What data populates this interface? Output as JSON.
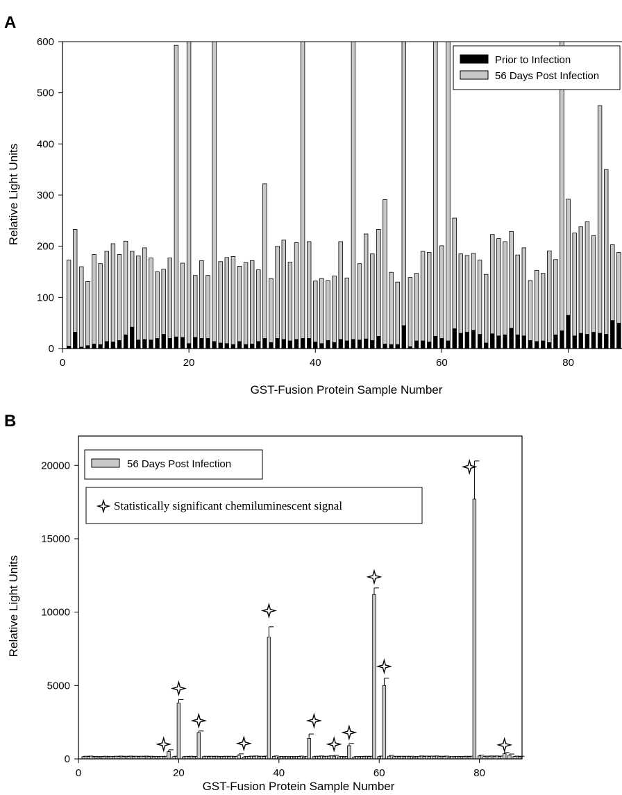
{
  "colors": {
    "prior": "#000000",
    "post": "#c8c8c8",
    "axis": "#000000"
  },
  "chart_data": [
    {
      "type": "bar",
      "panel_label": "A",
      "xlabel": "GST-Fusion Protein Sample Number",
      "ylabel": "Relative Light Units",
      "xlim": [
        0,
        88.5
      ],
      "ylim": [
        0,
        600
      ],
      "x_ticks": [
        0,
        20,
        40,
        60,
        80
      ],
      "y_ticks": [
        0,
        100,
        200,
        300,
        400,
        500,
        600
      ],
      "legend_position": "top-right",
      "x": [
        1,
        2,
        3,
        4,
        5,
        6,
        7,
        8,
        9,
        10,
        11,
        12,
        13,
        14,
        15,
        16,
        17,
        18,
        19,
        20,
        21,
        22,
        23,
        24,
        25,
        26,
        27,
        28,
        29,
        30,
        31,
        32,
        33,
        34,
        35,
        36,
        37,
        38,
        39,
        40,
        41,
        42,
        43,
        44,
        45,
        46,
        47,
        48,
        49,
        50,
        51,
        52,
        53,
        54,
        55,
        56,
        57,
        58,
        59,
        60,
        61,
        62,
        63,
        64,
        65,
        66,
        67,
        68,
        69,
        70,
        71,
        72,
        73,
        74,
        75,
        76,
        77,
        78,
        79,
        80,
        81,
        82,
        83,
        84,
        85,
        86,
        87,
        88
      ],
      "series": [
        {
          "name": "Prior to Infection",
          "values": [
            5,
            32,
            3,
            6,
            9,
            8,
            14,
            13,
            16,
            27,
            42,
            17,
            18,
            17,
            20,
            28,
            20,
            23,
            22,
            10,
            22,
            20,
            20,
            14,
            11,
            10,
            8,
            14,
            8,
            9,
            14,
            20,
            12,
            20,
            18,
            15,
            18,
            20,
            20,
            13,
            10,
            16,
            12,
            18,
            15,
            18,
            17,
            19,
            16,
            24,
            9,
            8,
            8,
            45,
            4,
            15,
            15,
            13,
            24,
            20,
            15,
            39,
            30,
            32,
            36,
            28,
            11,
            29,
            25,
            27,
            40,
            27,
            25,
            16,
            14,
            15,
            12,
            27,
            35,
            65,
            25,
            30,
            28,
            32,
            30,
            28,
            55,
            50
          ]
        },
        {
          "name": "56 Days Post Infection",
          "values": [
            173,
            233,
            160,
            131,
            184,
            166,
            190,
            205,
            184,
            210,
            190,
            181,
            197,
            177,
            150,
            155,
            177,
            593,
            167,
            600,
            143,
            172,
            143,
            600,
            170,
            178,
            180,
            161,
            168,
            172,
            154,
            322,
            137,
            200,
            212,
            169,
            207,
            600,
            209,
            132,
            137,
            133,
            142,
            209,
            138,
            600,
            166,
            224,
            185,
            233,
            291,
            149,
            130,
            600,
            139,
            147,
            190,
            188,
            600,
            201,
            600,
            255,
            185,
            182,
            186,
            173,
            145,
            223,
            215,
            209,
            229,
            183,
            197,
            133,
            153,
            147,
            191,
            174,
            600,
            292,
            226,
            238,
            248,
            221,
            475,
            350,
            203,
            188
          ]
        }
      ]
    },
    {
      "type": "bar",
      "panel_label": "B",
      "xlabel": "GST-Fusion Protein Sample Number",
      "ylabel": "Relative Light Units",
      "xlim": [
        0,
        88.5
      ],
      "ylim": [
        0,
        22000
      ],
      "x_ticks": [
        0,
        20,
        40,
        60,
        80
      ],
      "y_ticks": [
        0,
        5000,
        10000,
        15000,
        20000
      ],
      "legend_position": "top-left",
      "legend_star_text": "Statistically significant chemiluminescent signal",
      "x": [
        1,
        2,
        3,
        4,
        5,
        6,
        7,
        8,
        9,
        10,
        11,
        12,
        13,
        14,
        15,
        16,
        17,
        18,
        19,
        20,
        21,
        22,
        23,
        24,
        25,
        26,
        27,
        28,
        29,
        30,
        31,
        32,
        33,
        34,
        35,
        36,
        37,
        38,
        39,
        40,
        41,
        42,
        43,
        44,
        45,
        46,
        47,
        48,
        49,
        50,
        51,
        52,
        53,
        54,
        55,
        56,
        57,
        58,
        59,
        60,
        61,
        62,
        63,
        64,
        65,
        66,
        67,
        68,
        69,
        70,
        71,
        72,
        73,
        74,
        75,
        76,
        77,
        78,
        79,
        80,
        81,
        82,
        83,
        84,
        85,
        86,
        87,
        88
      ],
      "series": [
        {
          "name": "56 Days Post Infection",
          "values": [
            150,
            160,
            140,
            130,
            150,
            140,
            150,
            160,
            150,
            160,
            150,
            150,
            160,
            150,
            140,
            140,
            150,
            500,
            150,
            3800,
            140,
            150,
            140,
            1800,
            150,
            150,
            150,
            140,
            150,
            150,
            140,
            250,
            130,
            160,
            170,
            150,
            160,
            8300,
            170,
            130,
            130,
            130,
            130,
            160,
            130,
            1400,
            150,
            170,
            150,
            180,
            180,
            140,
            130,
            900,
            130,
            140,
            150,
            150,
            11200,
            160,
            5000,
            180,
            150,
            150,
            150,
            150,
            130,
            170,
            160,
            160,
            170,
            150,
            160,
            130,
            140,
            140,
            150,
            150,
            17700,
            200,
            160,
            170,
            170,
            160,
            350,
            250,
            160,
            150
          ],
          "error": [
            30,
            30,
            30,
            30,
            30,
            30,
            30,
            30,
            30,
            30,
            30,
            30,
            30,
            30,
            30,
            30,
            30,
            120,
            30,
            250,
            30,
            30,
            30,
            100,
            30,
            30,
            30,
            30,
            30,
            30,
            30,
            90,
            30,
            30,
            30,
            30,
            30,
            700,
            30,
            30,
            30,
            30,
            30,
            30,
            30,
            300,
            30,
            30,
            30,
            30,
            60,
            30,
            30,
            150,
            30,
            30,
            30,
            30,
            450,
            30,
            500,
            60,
            30,
            30,
            30,
            30,
            30,
            30,
            30,
            30,
            30,
            30,
            30,
            30,
            30,
            30,
            30,
            30,
            2600,
            60,
            30,
            30,
            30,
            30,
            80,
            80,
            30,
            30
          ]
        }
      ],
      "significant_samples": [
        17,
        20,
        24,
        33,
        38,
        47,
        51,
        54,
        59,
        61,
        78,
        85
      ],
      "significant_marker_y": [
        1000,
        4800,
        2600,
        1050,
        10100,
        2600,
        1000,
        1800,
        12400,
        6300,
        19900,
        950
      ]
    }
  ]
}
